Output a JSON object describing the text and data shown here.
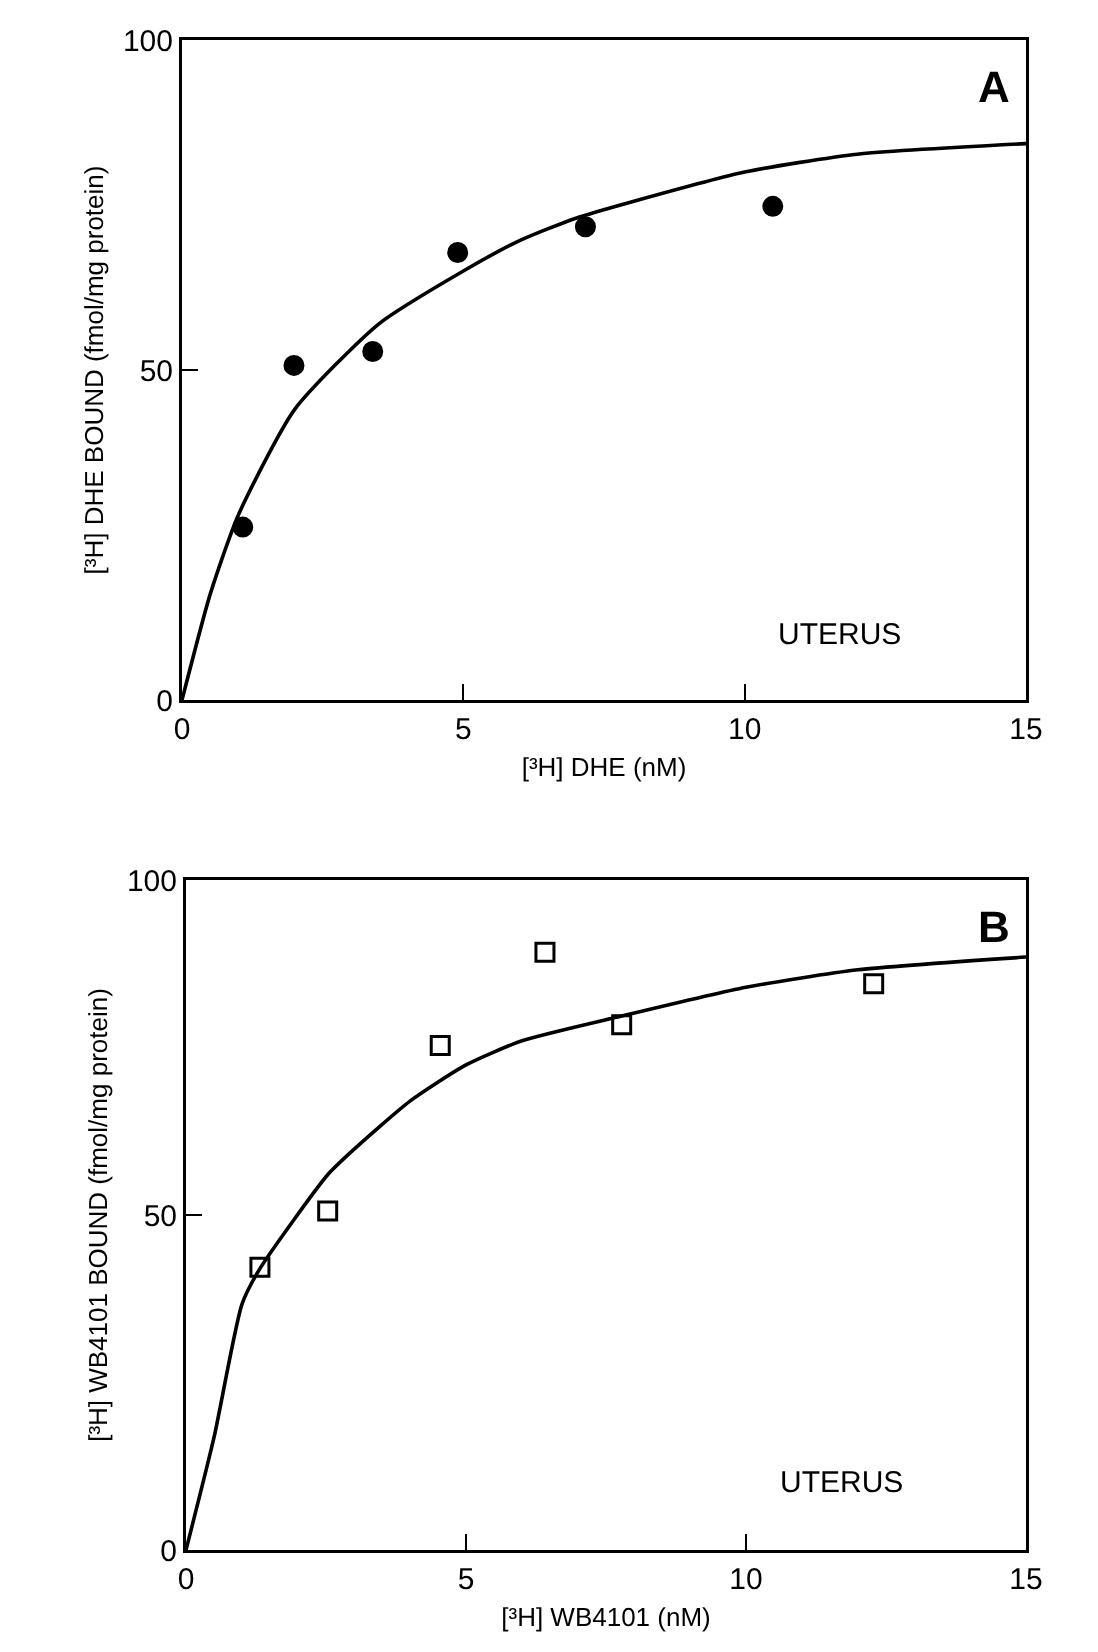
{
  "chart_data": [
    {
      "type": "scatter",
      "xlabel": "[³H] DHE (nM)",
      "ylabel": "[³H] DHE BOUND (fmol/mg protein)",
      "annotations": [
        "A",
        "UTERUS"
      ],
      "xlim": [
        0,
        15
      ],
      "ylim": [
        0,
        100
      ],
      "xticks": [
        0,
        5,
        10,
        15
      ],
      "yticks": [
        0,
        50,
        100
      ],
      "grid": false,
      "series": [
        {
          "color": "#000000",
          "marker": "circle",
          "x": [
            1.08,
            1.99,
            3.39,
            4.9,
            7.17,
            10.5
          ],
          "values": [
            26.2,
            50.7,
            52.8,
            67.8,
            71.7,
            74.8
          ]
        },
        {
          "type": "line",
          "marker": "none",
          "color": "#000000",
          "x": [
            0,
            0.5,
            1,
            2,
            3.5,
            5,
            6,
            7,
            8,
            10,
            12,
            15
          ],
          "values": [
            0,
            16,
            28,
            44,
            57,
            65,
            69.6,
            73,
            75.5,
            80,
            82.7,
            84.3
          ]
        }
      ]
    },
    {
      "type": "scatter",
      "xlabel": "[³H] WB4101 (nM)",
      "ylabel": "[³H] WB4101 BOUND (fmol/mg protein)",
      "annotations": [
        "B",
        "UTERUS"
      ],
      "xlim": [
        0,
        15
      ],
      "ylim": [
        0,
        100
      ],
      "xticks": [
        0,
        5,
        10,
        15
      ],
      "yticks": [
        0,
        50,
        100
      ],
      "grid": false,
      "series": [
        {
          "color": "#000000",
          "marker": "square",
          "x": [
            1.32,
            2.53,
            4.54,
            6.41,
            7.78,
            12.28
          ],
          "values": [
            42.2,
            50.6,
            75.3,
            89.2,
            78.4,
            84.5
          ]
        },
        {
          "type": "line",
          "marker": "none",
          "color": "#000000",
          "x": [
            0,
            0.5,
            1,
            1.32,
            2.53,
            3,
            4,
            5,
            6,
            7.78,
            10,
            12,
            15
          ],
          "values": [
            0,
            16.8,
            36.7,
            42,
            56,
            59.8,
            67,
            72.4,
            76,
            79.7,
            84,
            86.6,
            88.5
          ]
        }
      ]
    }
  ]
}
